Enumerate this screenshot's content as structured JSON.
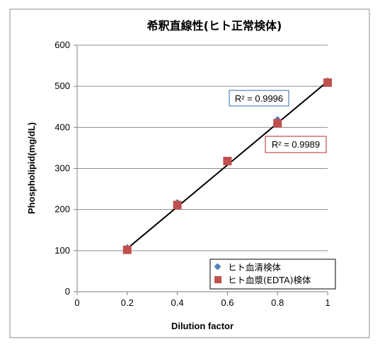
{
  "chart_data": {
    "type": "scatter",
    "title": "希釈直線性(ヒト正常検体)",
    "xlabel": "Dilution factor",
    "ylabel": "Phospholipid(mg/dL)",
    "xlim": [
      0,
      1
    ],
    "ylim": [
      0,
      600
    ],
    "xticks": [
      "0",
      "0.2",
      "0.4",
      "0.6",
      "0.8",
      "1"
    ],
    "yticks": [
      "0",
      "100",
      "200",
      "300",
      "400",
      "500",
      "600"
    ],
    "grid": "horizontal",
    "legend_position": "bottom-right",
    "series": [
      {
        "name": "ヒト血清検体",
        "marker": "diamond",
        "color": "#4f81bd",
        "x": [
          0.2,
          0.4,
          0.6,
          0.8,
          1.0
        ],
        "y": [
          106,
          216,
          318,
          418,
          512
        ]
      },
      {
        "name": "ヒト血漿(EDTA)検体",
        "marker": "square",
        "color": "#c0504d",
        "x": [
          0.2,
          0.4,
          0.6,
          0.8,
          1.0
        ],
        "y": [
          102,
          211,
          318,
          410,
          509
        ]
      }
    ],
    "trendline": {
      "color": "#000000",
      "x": [
        0.2,
        1.0
      ],
      "y": [
        105,
        512
      ]
    },
    "annotations": [
      {
        "text": "R² = 0.9996",
        "border_color": "#4f81bd"
      },
      {
        "text": "R² = 0.9989",
        "border_color": "#c0504d"
      }
    ]
  }
}
